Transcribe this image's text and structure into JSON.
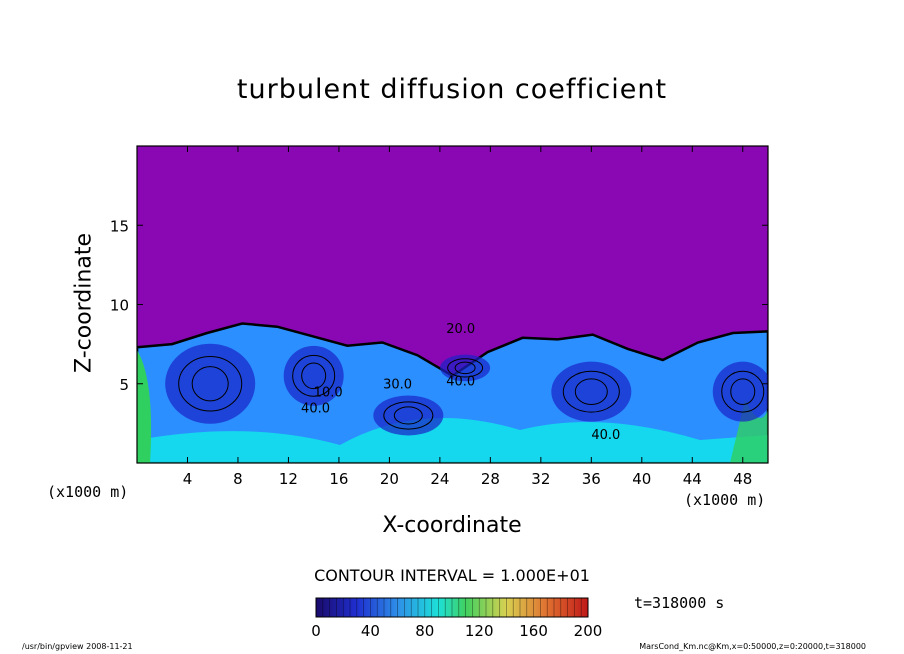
{
  "chart_data": {
    "type": "heatmap",
    "title": "turbulent diffusion coefficient",
    "xlabel": "X-coordinate",
    "ylabel": "Z-coordinate",
    "x_unit": "(x1000 m)",
    "xlim": [
      0,
      50
    ],
    "ylim": [
      0,
      20
    ],
    "xticks": [
      4,
      8,
      12,
      16,
      20,
      24,
      28,
      32,
      36,
      40,
      44,
      48
    ],
    "yticks": [
      5,
      10,
      15
    ],
    "contour_interval": "CONTOUR INTERVAL = 1.000E+01",
    "contour_labels": [
      "40.0",
      "20.0",
      "10.0",
      "30.0",
      "40.0",
      "40.0"
    ],
    "colorbar": {
      "ticks": [
        0,
        40,
        80,
        120,
        160,
        200
      ],
      "range": [
        0,
        200
      ]
    },
    "time": "t=318000 s",
    "top_boundary_z": [
      7.3,
      7.5,
      8.2,
      8.8,
      8.6,
      8.0,
      7.4,
      7.6,
      6.8,
      5.5,
      7.0,
      7.9,
      7.8,
      8.1,
      7.2,
      6.5,
      7.6,
      8.2,
      8.3
    ]
  },
  "footer": {
    "left": "/usr/bin/gpview   2008-11-21",
    "right": "MarsCond_Km.nc@Km,x=0:50000,z=0:20000,t=318000"
  },
  "colors": {
    "background_field": "#8a07b4",
    "frame": "#000000",
    "low": "#1a22c8",
    "mid": "#2b8fff",
    "cyan": "#10e8e8",
    "green": "#30d060"
  }
}
